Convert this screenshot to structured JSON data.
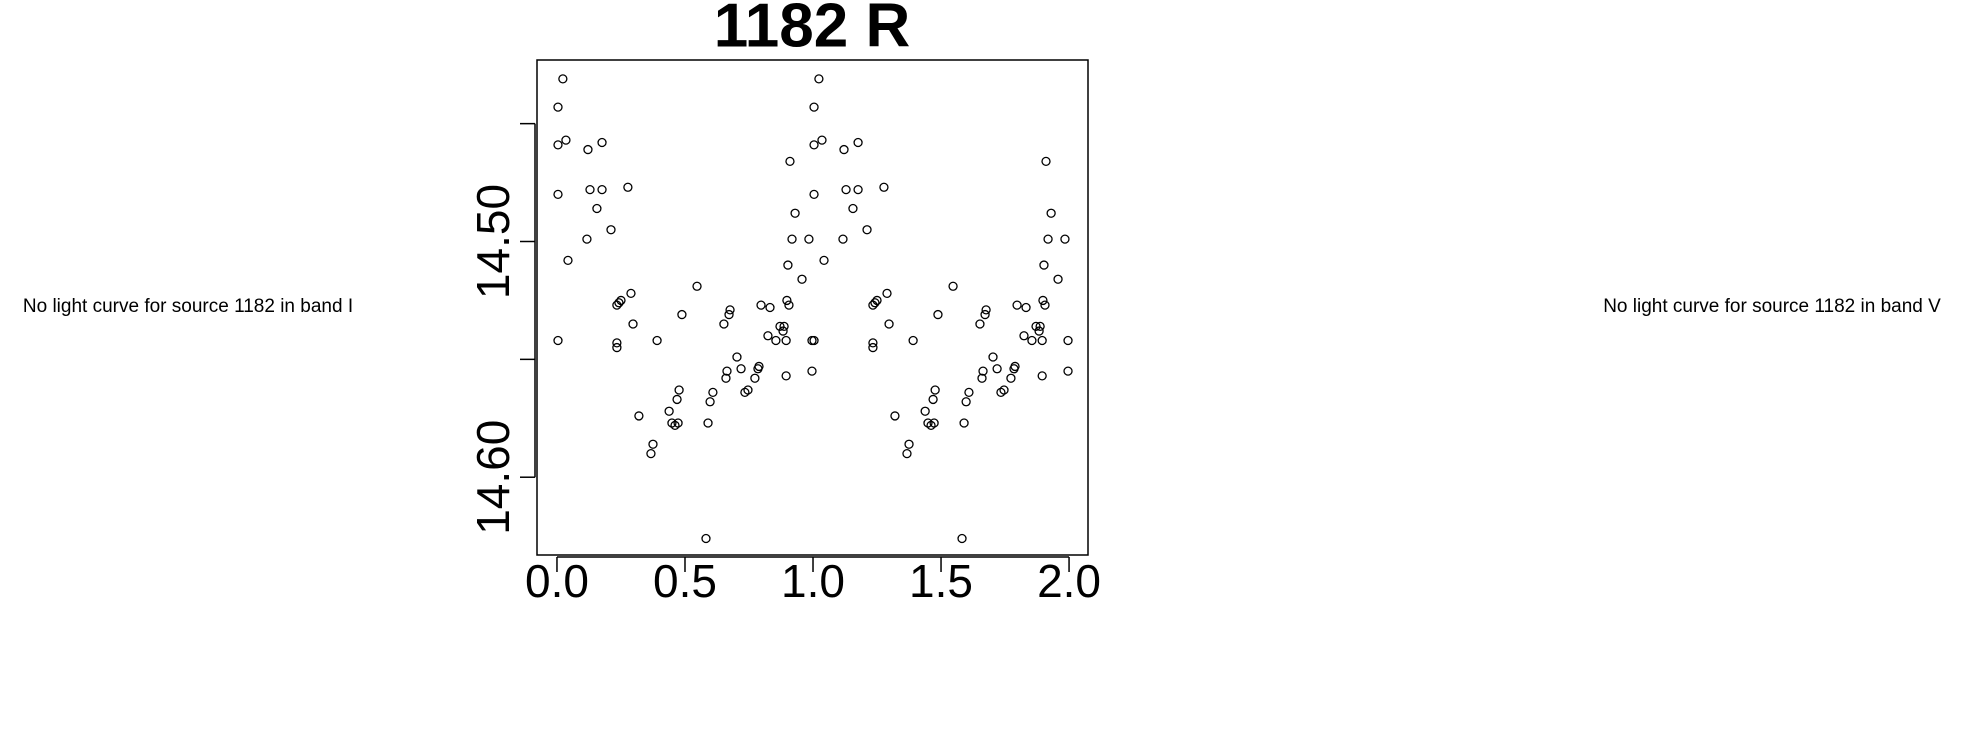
{
  "chart_data": {
    "type": "scatter",
    "title": "1182 R",
    "annotations": [
      "No light curve for source 1182 in band I",
      "No light curve for source 1182 in band V"
    ],
    "xlim": [
      -0.078,
      2.074
    ],
    "ylim": [
      14.633,
      14.423
    ],
    "xticks": [
      {
        "value": 0,
        "label": "0.0"
      },
      {
        "value": 0.5,
        "label": "0.5"
      },
      {
        "value": 1,
        "label": "1.0"
      },
      {
        "value": 1.5,
        "label": "1.5"
      },
      {
        "value": 2,
        "label": "2.0"
      }
    ],
    "yticks": [
      14.45,
      {
        "value": 14.5,
        "label": "14.50"
      },
      14.55,
      {
        "value": 14.6,
        "label": "14.60"
      }
    ],
    "color": "#000000",
    "x": [
      0.004,
      0.023,
      0.004,
      0.035,
      0.004,
      0.043,
      0.004,
      0.117,
      0.121,
      0.129,
      0.156,
      0.176,
      0.176,
      0.211,
      0.234,
      0.242,
      0.25,
      0.234,
      0.234,
      0.277,
      0.289,
      0.297,
      0.32,
      0.367,
      0.375,
      0.391,
      0.438,
      0.449,
      0.461,
      0.469,
      0.473,
      0.477,
      0.488,
      0.547,
      0.582,
      0.59,
      0.598,
      0.609,
      0.652,
      0.66,
      0.664,
      0.672,
      0.676,
      0.703,
      0.719,
      0.734,
      0.746,
      0.773,
      0.785,
      0.789,
      0.797,
      0.824,
      0.832,
      0.855,
      0.871,
      0.883,
      0.887,
      0.895,
      0.895,
      0.898,
      0.902,
      0.906,
      0.91,
      0.918,
      0.93,
      0.957,
      0.984,
      0.996,
      0.996,
      1.004,
      1.023,
      1.004,
      1.035,
      1.004,
      1.043,
      1.004,
      1.117,
      1.121,
      1.129,
      1.156,
      1.176,
      1.176,
      1.211,
      1.234,
      1.242,
      1.25,
      1.234,
      1.234,
      1.277,
      1.289,
      1.297,
      1.32,
      1.367,
      1.375,
      1.391,
      1.438,
      1.449,
      1.461,
      1.469,
      1.473,
      1.477,
      1.488,
      1.547,
      1.582,
      1.59,
      1.598,
      1.609,
      1.652,
      1.66,
      1.664,
      1.672,
      1.676,
      1.703,
      1.719,
      1.734,
      1.746,
      1.773,
      1.785,
      1.789,
      1.797,
      1.824,
      1.832,
      1.855,
      1.871,
      1.883,
      1.887,
      1.895,
      1.895,
      1.898,
      1.902,
      1.906,
      1.91,
      1.918,
      1.93,
      1.957,
      1.984,
      1.996,
      1.996
    ],
    "y": [
      14.443,
      14.431,
      14.459,
      14.457,
      14.48,
      14.508,
      14.542,
      14.499,
      14.461,
      14.478,
      14.486,
      14.458,
      14.478,
      14.495,
      14.527,
      14.526,
      14.525,
      14.543,
      14.545,
      14.477,
      14.522,
      14.535,
      14.574,
      14.59,
      14.586,
      14.542,
      14.572,
      14.577,
      14.578,
      14.567,
      14.577,
      14.563,
      14.531,
      14.519,
      14.626,
      14.577,
      14.568,
      14.564,
      14.535,
      14.558,
      14.555,
      14.531,
      14.529,
      14.549,
      14.554,
      14.564,
      14.563,
      14.558,
      14.554,
      14.553,
      14.527,
      14.54,
      14.528,
      14.542,
      14.536,
      14.538,
      14.536,
      14.557,
      14.542,
      14.525,
      14.51,
      14.527,
      14.466,
      14.499,
      14.488,
      14.516,
      14.499,
      14.542,
      14.555,
      14.443,
      14.431,
      14.459,
      14.457,
      14.48,
      14.508,
      14.542,
      14.499,
      14.461,
      14.478,
      14.486,
      14.458,
      14.478,
      14.495,
      14.527,
      14.526,
      14.525,
      14.543,
      14.545,
      14.477,
      14.522,
      14.535,
      14.574,
      14.59,
      14.586,
      14.542,
      14.572,
      14.577,
      14.578,
      14.567,
      14.577,
      14.563,
      14.531,
      14.519,
      14.626,
      14.577,
      14.568,
      14.564,
      14.535,
      14.558,
      14.555,
      14.531,
      14.529,
      14.549,
      14.554,
      14.564,
      14.563,
      14.558,
      14.554,
      14.553,
      14.527,
      14.54,
      14.528,
      14.542,
      14.536,
      14.538,
      14.536,
      14.557,
      14.542,
      14.525,
      14.51,
      14.527,
      14.466,
      14.499,
      14.488,
      14.516,
      14.499,
      14.542,
      14.555
    ]
  }
}
